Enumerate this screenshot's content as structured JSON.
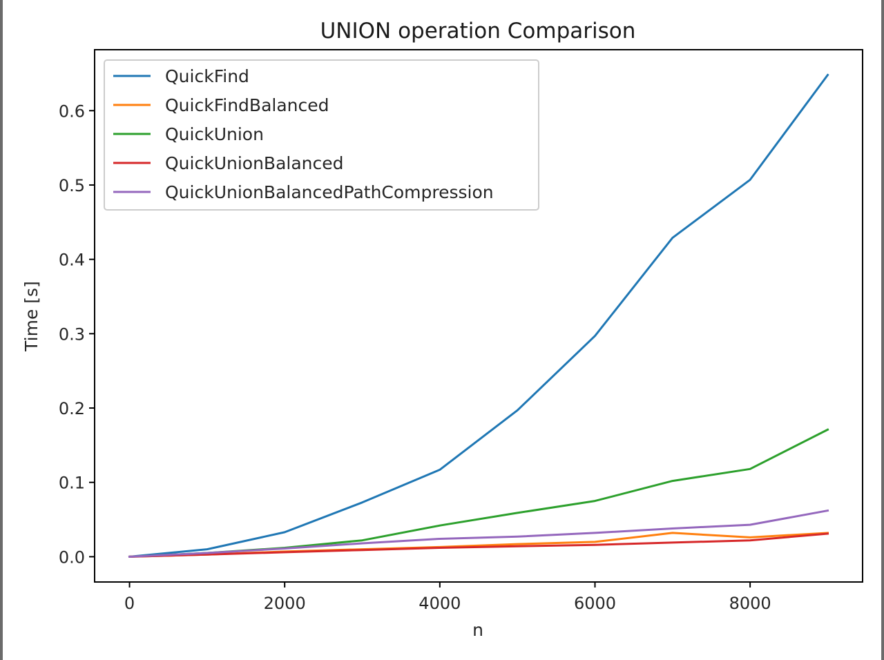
{
  "chart_data": {
    "type": "line",
    "title": "UNION operation Comparison",
    "xlabel": "n",
    "ylabel": "Time [s]",
    "xlim": [
      -450,
      9450
    ],
    "ylim": [
      -0.034,
      0.682
    ],
    "xticks": [
      0,
      2000,
      4000,
      6000,
      8000
    ],
    "xtick_labels": [
      "0",
      "2000",
      "4000",
      "6000",
      "8000"
    ],
    "yticks": [
      0.0,
      0.1,
      0.2,
      0.3,
      0.4,
      0.5,
      0.6
    ],
    "ytick_labels": [
      "0.0",
      "0.1",
      "0.2",
      "0.3",
      "0.4",
      "0.5",
      "0.6"
    ],
    "grid": false,
    "legend_position": "top-left",
    "x": [
      0,
      1000,
      2000,
      3000,
      4000,
      5000,
      6000,
      7000,
      8000,
      9000
    ],
    "series": [
      {
        "name": "QuickFind",
        "color": "#1f77b4",
        "values": [
          0.0,
          0.01,
          0.033,
          0.073,
          0.117,
          0.197,
          0.297,
          0.429,
          0.507,
          0.648
        ]
      },
      {
        "name": "QuickFindBalanced",
        "color": "#ff7f0e",
        "values": [
          0.0,
          0.003,
          0.007,
          0.01,
          0.013,
          0.017,
          0.02,
          0.032,
          0.026,
          0.032
        ]
      },
      {
        "name": "QuickUnion",
        "color": "#2ca02c",
        "values": [
          0.0,
          0.005,
          0.012,
          0.022,
          0.042,
          0.059,
          0.075,
          0.102,
          0.118,
          0.171
        ]
      },
      {
        "name": "QuickUnionBalanced",
        "color": "#d62728",
        "values": [
          0.0,
          0.003,
          0.006,
          0.009,
          0.012,
          0.014,
          0.016,
          0.019,
          0.022,
          0.031
        ]
      },
      {
        "name": "QuickUnionBalancedPathCompression",
        "color": "#9467bd",
        "values": [
          0.0,
          0.005,
          0.011,
          0.018,
          0.024,
          0.027,
          0.032,
          0.038,
          0.043,
          0.062
        ]
      }
    ]
  }
}
